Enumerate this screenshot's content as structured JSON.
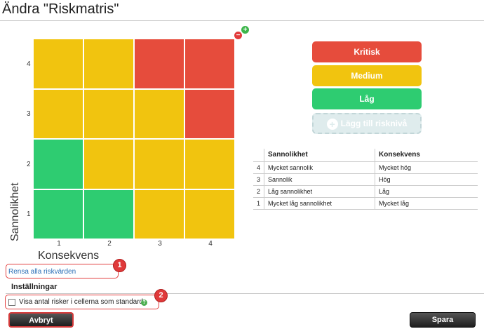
{
  "page": {
    "title": "Ändra \"Riskmatris\""
  },
  "colors": {
    "red": "#e64c3c",
    "yellow": "#f1c40f",
    "green": "#2ecc71",
    "add_level_bg": "#dfeced",
    "link": "#2a6fb6",
    "callout": "#e34040"
  },
  "matrix": {
    "row_labels": [
      "4",
      "3",
      "2",
      "1"
    ],
    "col_labels": [
      "1",
      "2",
      "3",
      "4"
    ],
    "cells": [
      [
        "yellow",
        "yellow",
        "red",
        "red"
      ],
      [
        "yellow",
        "yellow",
        "yellow",
        "red"
      ],
      [
        "green",
        "yellow",
        "yellow",
        "yellow"
      ],
      [
        "green",
        "green",
        "yellow",
        "yellow"
      ]
    ],
    "y_axis_label": "Sannolikhet",
    "x_axis_label": "Konsekvens",
    "add_icon": "+",
    "remove_icon": "−"
  },
  "risk_levels": [
    {
      "label": "Kritisk",
      "color": "#e64c3c"
    },
    {
      "label": "Medium",
      "color": "#f1c40f"
    },
    {
      "label": "Låg",
      "color": "#2ecc71"
    }
  ],
  "add_level": {
    "icon": "+",
    "label": "Lägg till risknivå"
  },
  "legend_table": {
    "headers": [
      "",
      "Sannolikhet",
      "Konsekvens"
    ],
    "rows": [
      [
        "4",
        "Mycket sannolik",
        "Mycket hög"
      ],
      [
        "3",
        "Sannolik",
        "Hög"
      ],
      [
        "2",
        "Låg sannolikhet",
        "Låg"
      ],
      [
        "1",
        "Mycket låg sannolikhet",
        "Mycket låg"
      ]
    ]
  },
  "clear_link": "Rensa alla riskvärden",
  "settings": {
    "title": "Inställningar",
    "checkbox_label": "Visa antal risker i cellerna som standard",
    "checked": false,
    "help_icon": "?"
  },
  "callouts": [
    "1",
    "2"
  ],
  "buttons": {
    "cancel": "Avbryt",
    "save": "Spara"
  }
}
